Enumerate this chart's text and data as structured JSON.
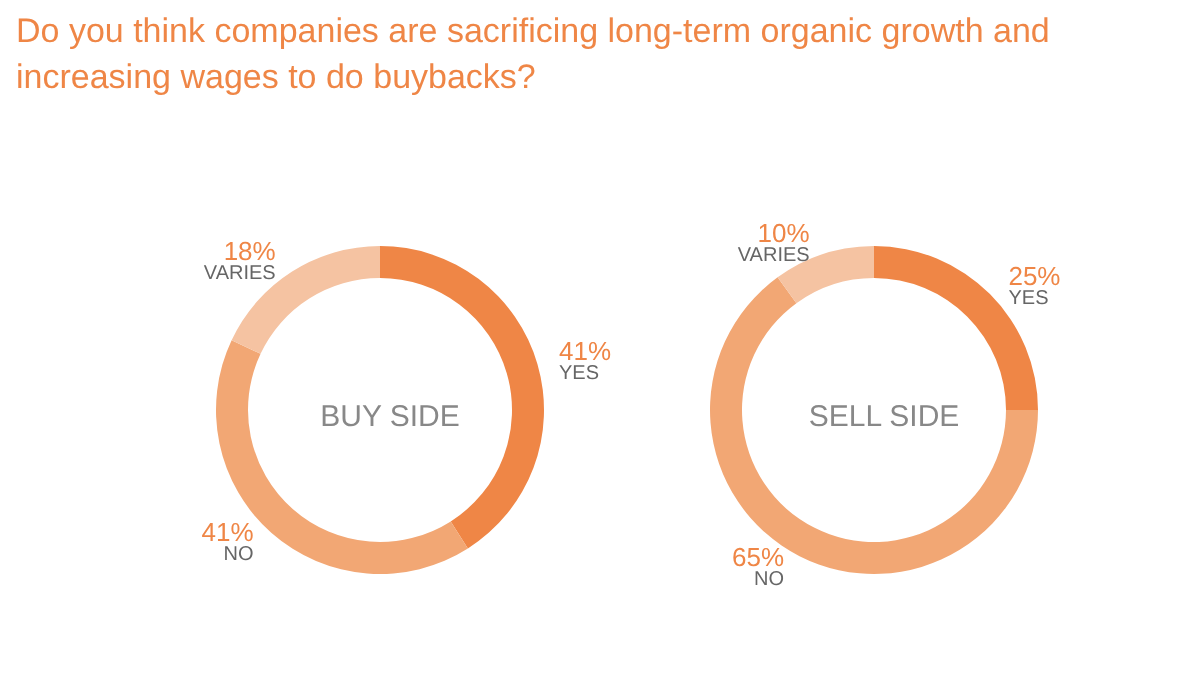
{
  "chart_data": [
    {
      "type": "donut",
      "title": "BUY SIDE",
      "annotations": [
        "Do you think companies are sacrificing long-term organic growth and increasing wages to do buybacks?"
      ],
      "categories": [
        "YES",
        "NO",
        "VARIES"
      ],
      "values": [
        41,
        41,
        18
      ],
      "value_labels": [
        "41%",
        "41%",
        "18%"
      ],
      "colors": [
        "#ef8646",
        "#f2a774",
        "#f5c3a2"
      ]
    },
    {
      "type": "donut",
      "title": "SELL SIDE",
      "categories": [
        "YES",
        "NO",
        "VARIES"
      ],
      "values": [
        25,
        65,
        10
      ],
      "value_labels": [
        "25%",
        "65%",
        "10%"
      ],
      "colors": [
        "#ef8646",
        "#f2a774",
        "#f5c3a2"
      ]
    }
  ]
}
